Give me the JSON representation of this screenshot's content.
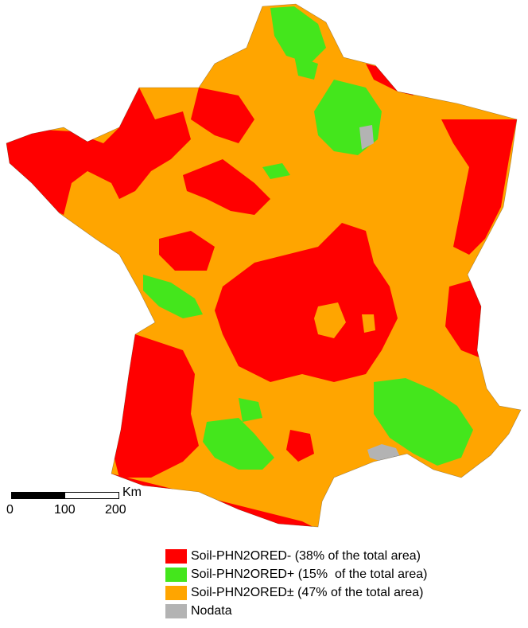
{
  "colors": {
    "red": "#ff0000",
    "green": "#44e61c",
    "orange": "#ffa500",
    "grey": "#b3b3b3",
    "white": "#ffffff"
  },
  "scale": {
    "unit": "Km",
    "ticks": [
      "0",
      "100",
      "200"
    ]
  },
  "legend": [
    {
      "label": "Soil-PHN2ORED- (38% of the total area)",
      "color": "#ff0000"
    },
    {
      "label": "Soil-PHN2ORED+ (15%  of the total area)",
      "color": "#44e61c"
    },
    {
      "label": "Soil-PHN2ORED± (47% of the total area)",
      "color": "#ffa500"
    },
    {
      "label": "Nodata",
      "color": "#b3b3b3"
    }
  ]
}
